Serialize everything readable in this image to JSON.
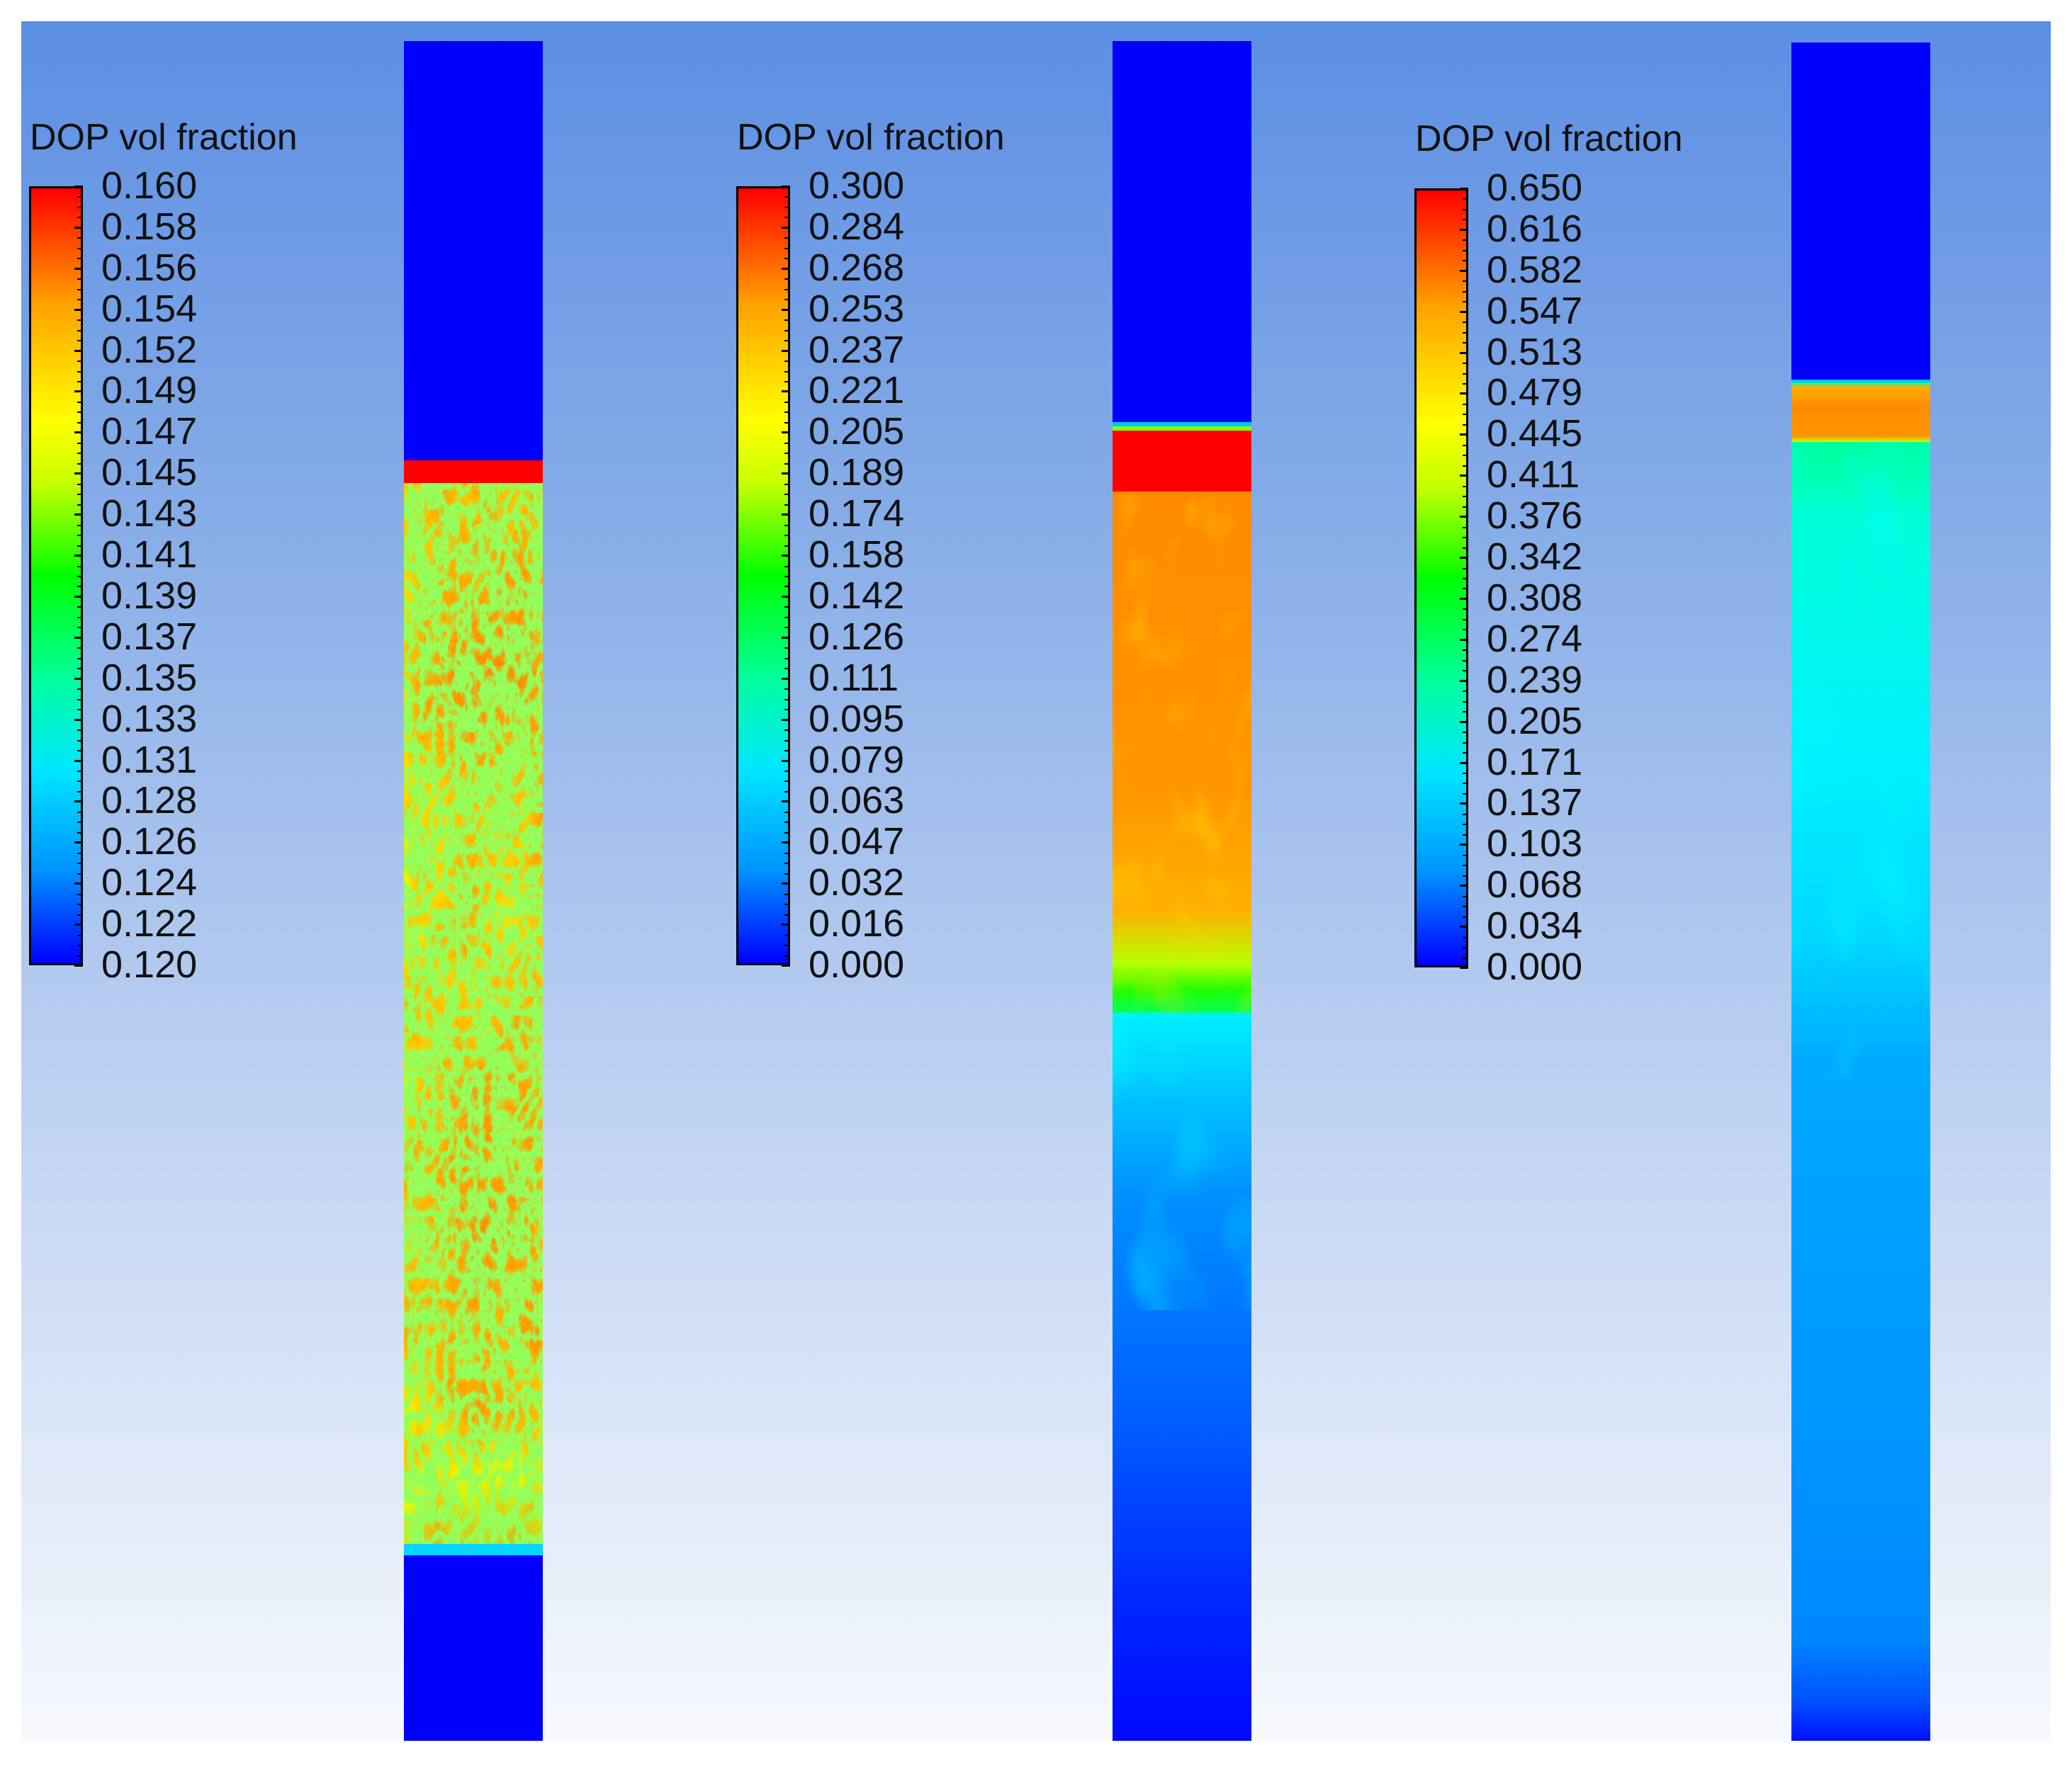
{
  "colors": {
    "colormap": [
      "#0000ff",
      "#0093ff",
      "#00e6ff",
      "#00ff9a",
      "#00ff00",
      "#c8ff00",
      "#ffff00",
      "#ffa200",
      "#ff0000"
    ],
    "low": "#0000ff",
    "high": "#ff0000",
    "background_top": "#5b8ee3",
    "background_bottom": "#f7f9fd"
  },
  "panels": [
    {
      "legend_title": "DOP vol fraction",
      "tick_labels": [
        "0.160",
        "0.158",
        "0.156",
        "0.154",
        "0.152",
        "0.149",
        "0.147",
        "0.145",
        "0.143",
        "0.141",
        "0.139",
        "0.137",
        "0.135",
        "0.133",
        "0.131",
        "0.128",
        "0.126",
        "0.124",
        "0.122",
        "0.120"
      ]
    },
    {
      "legend_title": "DOP vol fraction",
      "tick_labels": [
        "0.300",
        "0.284",
        "0.268",
        "0.253",
        "0.237",
        "0.221",
        "0.205",
        "0.189",
        "0.174",
        "0.158",
        "0.142",
        "0.126",
        "0.111",
        "0.095",
        "0.079",
        "0.063",
        "0.047",
        "0.032",
        "0.016",
        "0.000"
      ]
    },
    {
      "legend_title": "DOP vol fraction",
      "tick_labels": [
        "0.650",
        "0.616",
        "0.582",
        "0.547",
        "0.513",
        "0.479",
        "0.445",
        "0.411",
        "0.376",
        "0.342",
        "0.308",
        "0.274",
        "0.239",
        "0.205",
        "0.171",
        "0.137",
        "0.103",
        "0.068",
        "0.034",
        "0.000"
      ]
    }
  ]
}
